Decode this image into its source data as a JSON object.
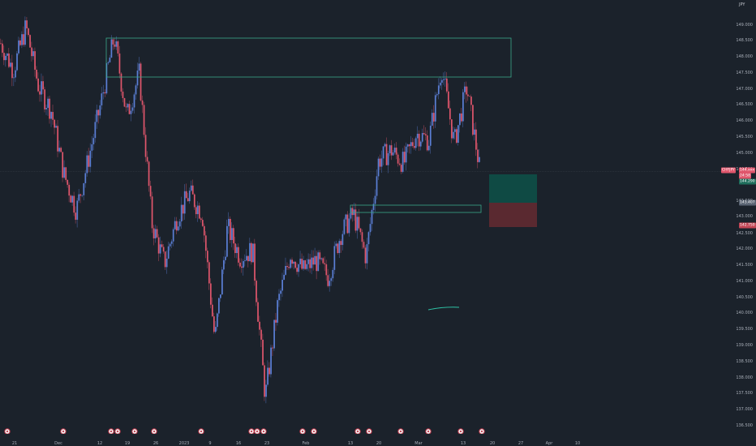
{
  "currency": "JPY",
  "price_axis": {
    "ticks": [
      "149.000",
      "148.500",
      "148.000",
      "147.500",
      "147.000",
      "146.500",
      "146.000",
      "145.500",
      "145.000",
      "144.500",
      "143.500",
      "143.000",
      "142.500",
      "142.000",
      "141.500",
      "141.000",
      "140.500",
      "140.000",
      "139.500",
      "139.000",
      "138.500",
      "138.000",
      "137.500",
      "137.000",
      "136.500"
    ],
    "symbol_badge": "CHFJPY",
    "current_price": "144.xxx",
    "countdown": "24:58",
    "target_price": "144.290",
    "entry_price": "143.407",
    "stop_price": "142.750"
  },
  "time_axis": {
    "labels": [
      "21",
      "Dec",
      "12",
      "19",
      "26",
      "2023",
      "9",
      "16",
      "23",
      "Feb",
      "13",
      "20",
      "Mar",
      "13",
      "20",
      "27",
      "Apr",
      "10"
    ]
  },
  "colors": {
    "background": "#1b222b",
    "up_candle": "#5b7fd6",
    "down_candle": "#e0566c",
    "zone_border": "#3aa88a",
    "profit_zone": "#0f4a44",
    "loss_zone": "#5a2930",
    "moving_average": "#2ec4a6"
  },
  "chart_data": {
    "type": "line",
    "title": "",
    "series": [
      {
        "values": [
          148.2,
          147.4,
          148.7,
          146.9,
          146.2,
          144.3,
          143.2,
          144.8,
          146.5,
          148.4,
          146.0,
          147.3,
          142.8,
          141.6,
          143.0,
          143.7,
          143.1,
          139.3,
          142.7,
          141.8,
          142.0,
          137.6,
          140.4,
          141.9,
          141.4,
          141.7,
          141.2,
          142.5,
          143.1,
          141.8,
          144.7,
          145.0,
          144.6,
          145.5,
          145.3,
          147.5,
          145.2,
          146.9,
          144.5
        ]
      }
    ],
    "ylim": [
      136.5,
      149.5
    ],
    "grid": false
  },
  "markers": [
    "event",
    "event",
    "event",
    "event",
    "event",
    "event",
    "event",
    "event",
    "event",
    "event",
    "event",
    "event",
    "event",
    "event",
    "event",
    "event"
  ]
}
